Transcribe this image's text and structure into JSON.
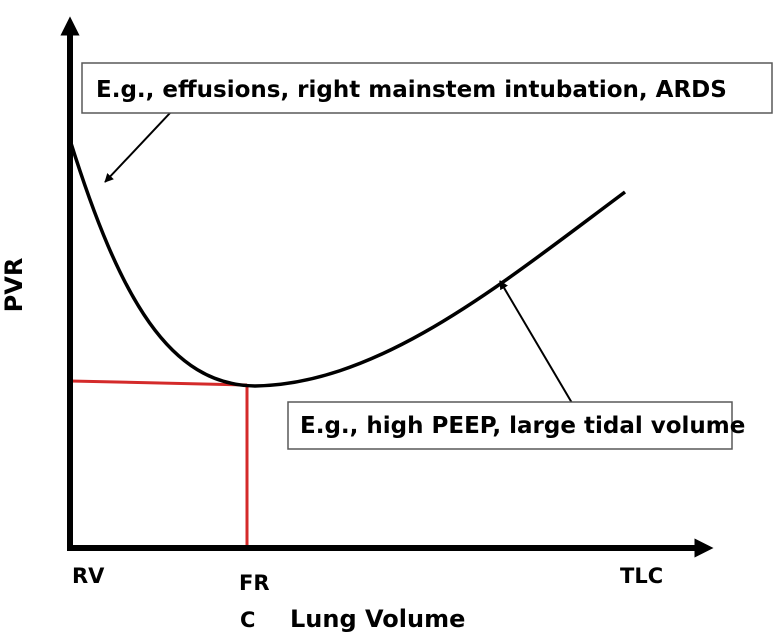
{
  "axes": {
    "y_label": "PVR",
    "x_label": "Lung Volume",
    "x_ticks": {
      "rv": "RV",
      "frc_line1": "FR",
      "frc_line2": "C",
      "tlc": "TLC"
    }
  },
  "annotations": {
    "upper": "E.g., effusions, right mainstem intubation, ARDS",
    "lower": "E.g., high PEEP, large tidal volume"
  },
  "colors": {
    "axis": "#000000",
    "curve": "#000000",
    "frc_marker": "#d42a2a",
    "box_border": "#595959"
  }
}
